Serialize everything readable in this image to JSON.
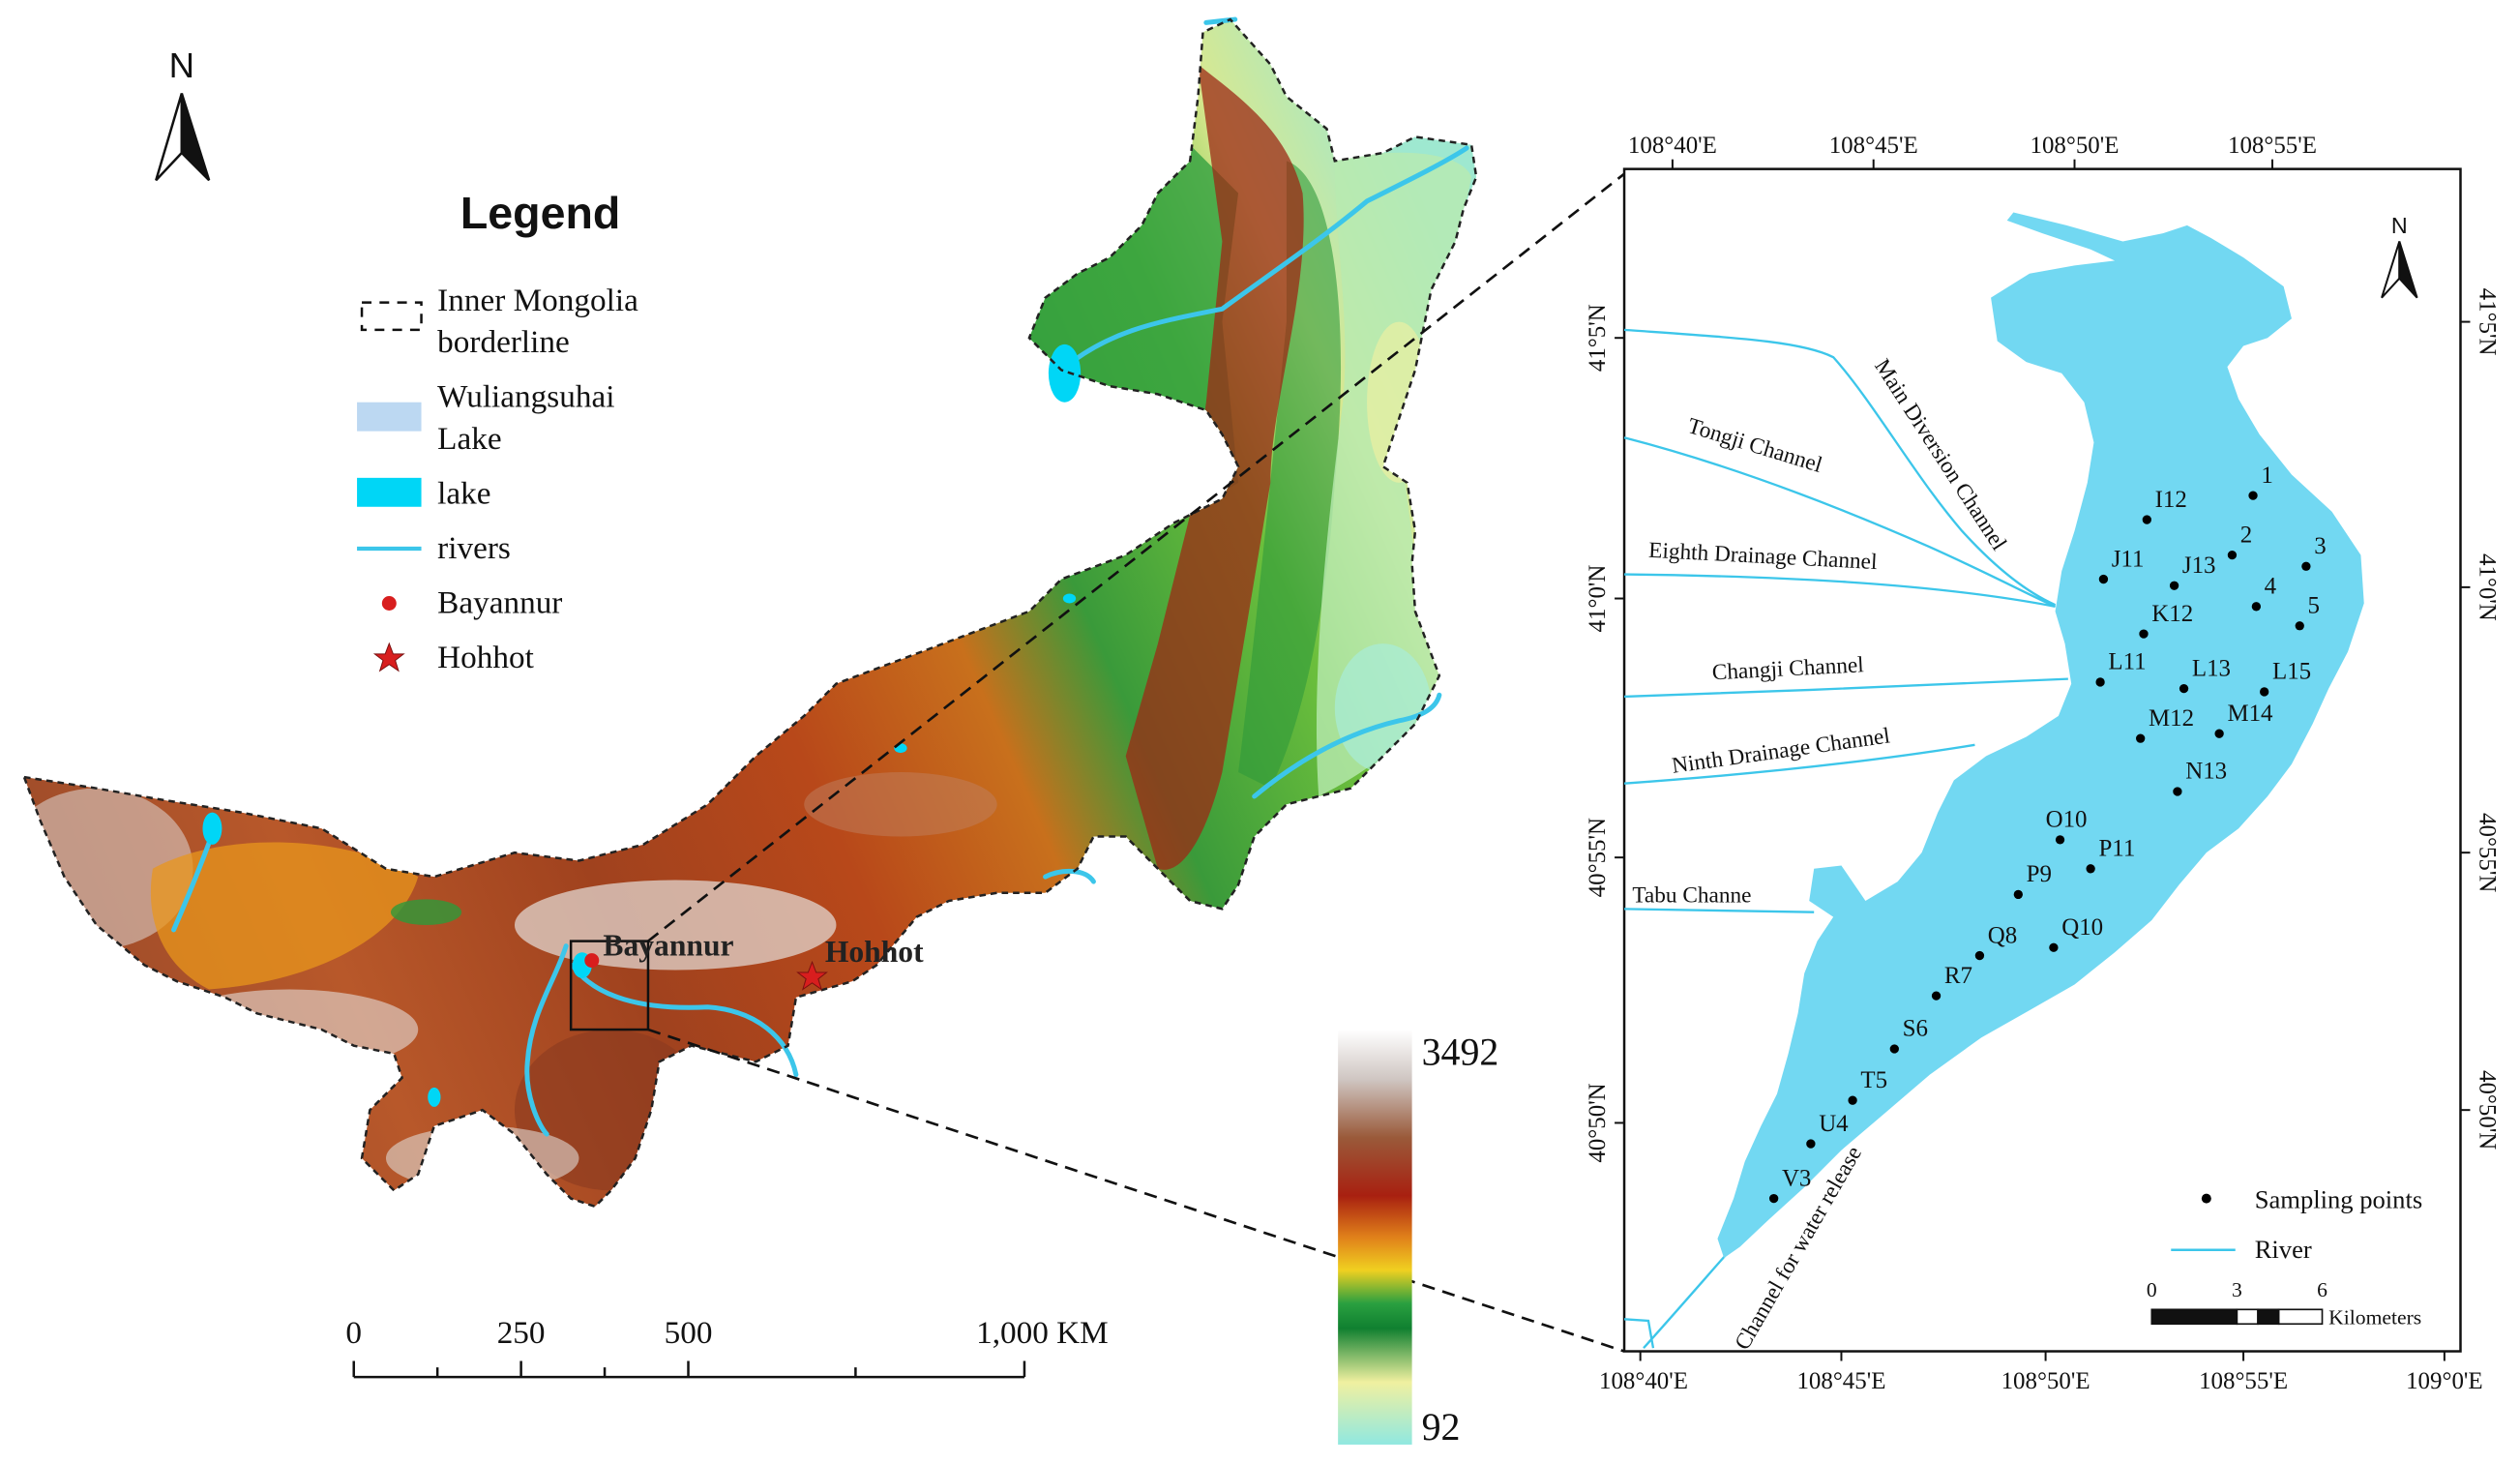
{
  "figure": {
    "north_label": "N",
    "legend": {
      "title": "Legend",
      "borderline_line1": "Inner Mongolia",
      "borderline_line2": "borderline",
      "wuliangsuhai_line1": "Wuliangsuhai",
      "wuliangsuhai_line2": "Lake",
      "lake": "lake",
      "rivers": "rivers",
      "bayannur": "Bayannur",
      "hohhot": "Hohhot"
    },
    "place_labels": {
      "bayannur": "Bayannur",
      "hohhot": "Hohhot"
    },
    "scale_bar": {
      "labels": [
        "0",
        "250",
        "500",
        "1,000 KM"
      ]
    },
    "elevation_ramp": {
      "max": "3492",
      "min": "92"
    }
  },
  "inset": {
    "north_label": "N",
    "lon_top": [
      "108°40'E",
      "108°45'E",
      "108°50'E",
      "108°55'E"
    ],
    "lon_bottom": [
      "108°40'E",
      "108°45'E",
      "108°50'E",
      "108°55'E",
      "109°0'E"
    ],
    "lat_left": [
      "41°5'N",
      "41°0'N",
      "40°55'N",
      "40°50'N"
    ],
    "lat_right": [
      "41°5'N",
      "41°0'N",
      "40°55'N",
      "40°50'N"
    ],
    "channels": {
      "main_diversion": "Main Diversion Channel",
      "tongji": "Tongji Channel",
      "eighth_drainage": "Eighth Drainage Channel",
      "changji": "Changji Channel",
      "ninth_drainage": "Ninth Drainage Channel",
      "tabu": "Tabu Channe",
      "water_release": "Channel for water release"
    },
    "sampling_points": [
      "1",
      "I12",
      "2",
      "3",
      "J11",
      "J13",
      "4",
      "5",
      "K12",
      "L11",
      "L13",
      "L15",
      "M12",
      "M14",
      "N13",
      "O10",
      "P11",
      "P9",
      "Q10",
      "Q8",
      "R7",
      "S6",
      "T5",
      "U4",
      "V3"
    ],
    "legend": {
      "sampling_points": "Sampling points",
      "river": "River"
    },
    "scale": {
      "labels": [
        "0",
        "3",
        "6"
      ],
      "unit": "Kilometers"
    }
  },
  "colors": {
    "lake": "#00d6f6",
    "wuliangsuhai_lake": "#bcd8f2",
    "inset_lake": "#72d8f2",
    "river": "#3cc6ea",
    "bayannur": "#d81e1e",
    "hohhot": "#d81e1e",
    "sampling_point": "#000000"
  }
}
